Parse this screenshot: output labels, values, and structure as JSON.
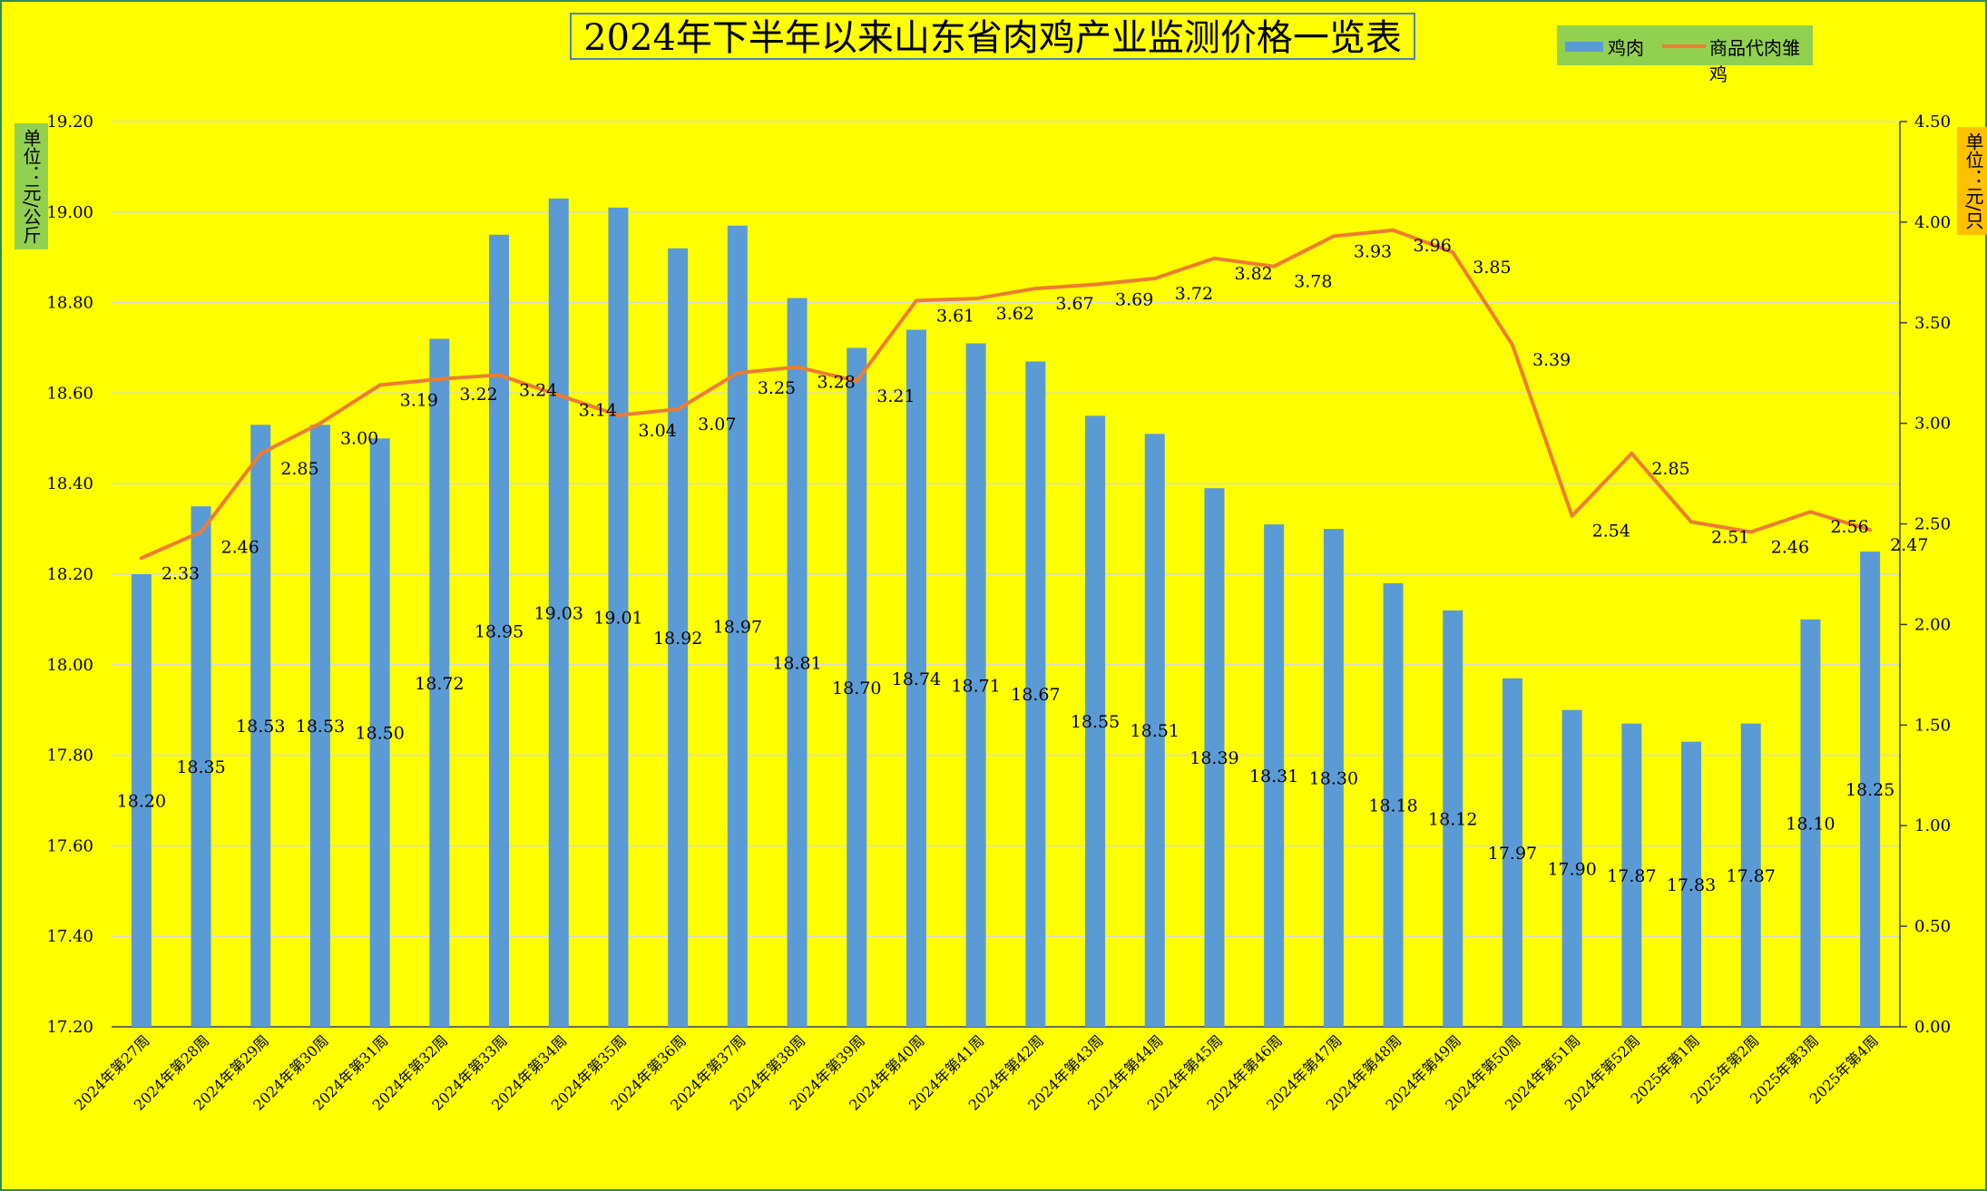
{
  "title": "2024年下半年以来山东省肉鸡产业监测价格一览表",
  "legend": {
    "bar_label": "鸡肉",
    "line_label": "商品代肉雏鸡"
  },
  "left_axis_unit": "单位：元/公斤",
  "right_axis_unit": "单位：元/只",
  "colors": {
    "background": "#ffff00",
    "bar": "#5b9bd5",
    "line": "#ed7d31",
    "legend_bg": "#92d050",
    "right_unit_bg": "#ffc000"
  },
  "chart_data": {
    "type": "bar+line",
    "categories": [
      "2024年第27周",
      "2024年第28周",
      "2024年第29周",
      "2024年第30周",
      "2024年第31周",
      "2024年第32周",
      "2024年第33周",
      "2024年第34周",
      "2024年第35周",
      "2024年第36周",
      "2024年第37周",
      "2024年第38周",
      "2024年第39周",
      "2024年第40周",
      "2024年第41周",
      "2024年第42周",
      "2024年第43周",
      "2024年第44周",
      "2024年第45周",
      "2024年第46周",
      "2024年第47周",
      "2024年第48周",
      "2024年第49周",
      "2024年第50周",
      "2024年第51周",
      "2024年第52周",
      "2025年第1周",
      "2025年第2周",
      "2025年第3周",
      "2025年第4周"
    ],
    "series": [
      {
        "name": "鸡肉",
        "type": "bar",
        "axis": "left",
        "values": [
          18.2,
          18.35,
          18.53,
          18.53,
          18.5,
          18.72,
          18.95,
          19.03,
          19.01,
          18.92,
          18.97,
          18.81,
          18.7,
          18.74,
          18.71,
          18.67,
          18.55,
          18.51,
          18.39,
          18.31,
          18.3,
          18.18,
          18.12,
          17.97,
          17.9,
          17.87,
          17.83,
          17.87,
          18.1,
          18.25
        ]
      },
      {
        "name": "商品代肉雏鸡",
        "type": "line",
        "axis": "right",
        "values": [
          2.33,
          2.46,
          2.85,
          3.0,
          3.19,
          3.22,
          3.24,
          3.14,
          3.04,
          3.07,
          3.25,
          3.28,
          3.21,
          3.61,
          3.62,
          3.67,
          3.69,
          3.72,
          3.82,
          3.78,
          3.93,
          3.96,
          3.85,
          3.39,
          2.54,
          2.85,
          2.51,
          2.46,
          2.56,
          2.47
        ]
      }
    ],
    "y_left": {
      "min": 17.2,
      "max": 19.2,
      "step": 0.2
    },
    "y_right": {
      "min": 0.0,
      "max": 4.5,
      "step": 0.5
    },
    "grid": true,
    "legend_position": "top-right"
  }
}
